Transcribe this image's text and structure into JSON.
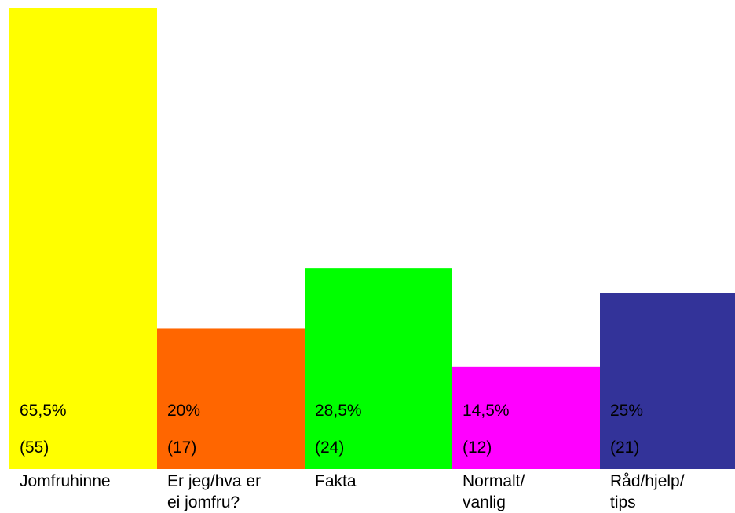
{
  "chart_data": {
    "type": "bar",
    "title": "",
    "xlabel": "",
    "ylabel": "",
    "ylim": [
      0,
      65.5
    ],
    "grid": false,
    "legend": "none",
    "categories": [
      [
        "Jomfruhinne"
      ],
      [
        "Er jeg/hva er",
        "ei jomfru?"
      ],
      [
        "Fakta"
      ],
      [
        "Normalt/",
        "vanlig"
      ],
      [
        "Råd/hjelp/",
        "tips"
      ]
    ],
    "values": [
      65.5,
      20,
      28.5,
      14.5,
      25
    ],
    "value_labels": [
      "65,5%",
      "20%",
      "28,5%",
      "14,5%",
      "25%"
    ],
    "counts": [
      55,
      17,
      24,
      12,
      21
    ],
    "count_labels": [
      "(55)",
      "(17)",
      "(24)",
      "(12)",
      "(21)"
    ],
    "colors": [
      "#ffff00",
      "#ff6600",
      "#00ff00",
      "#ff00ff",
      "#333399"
    ]
  }
}
